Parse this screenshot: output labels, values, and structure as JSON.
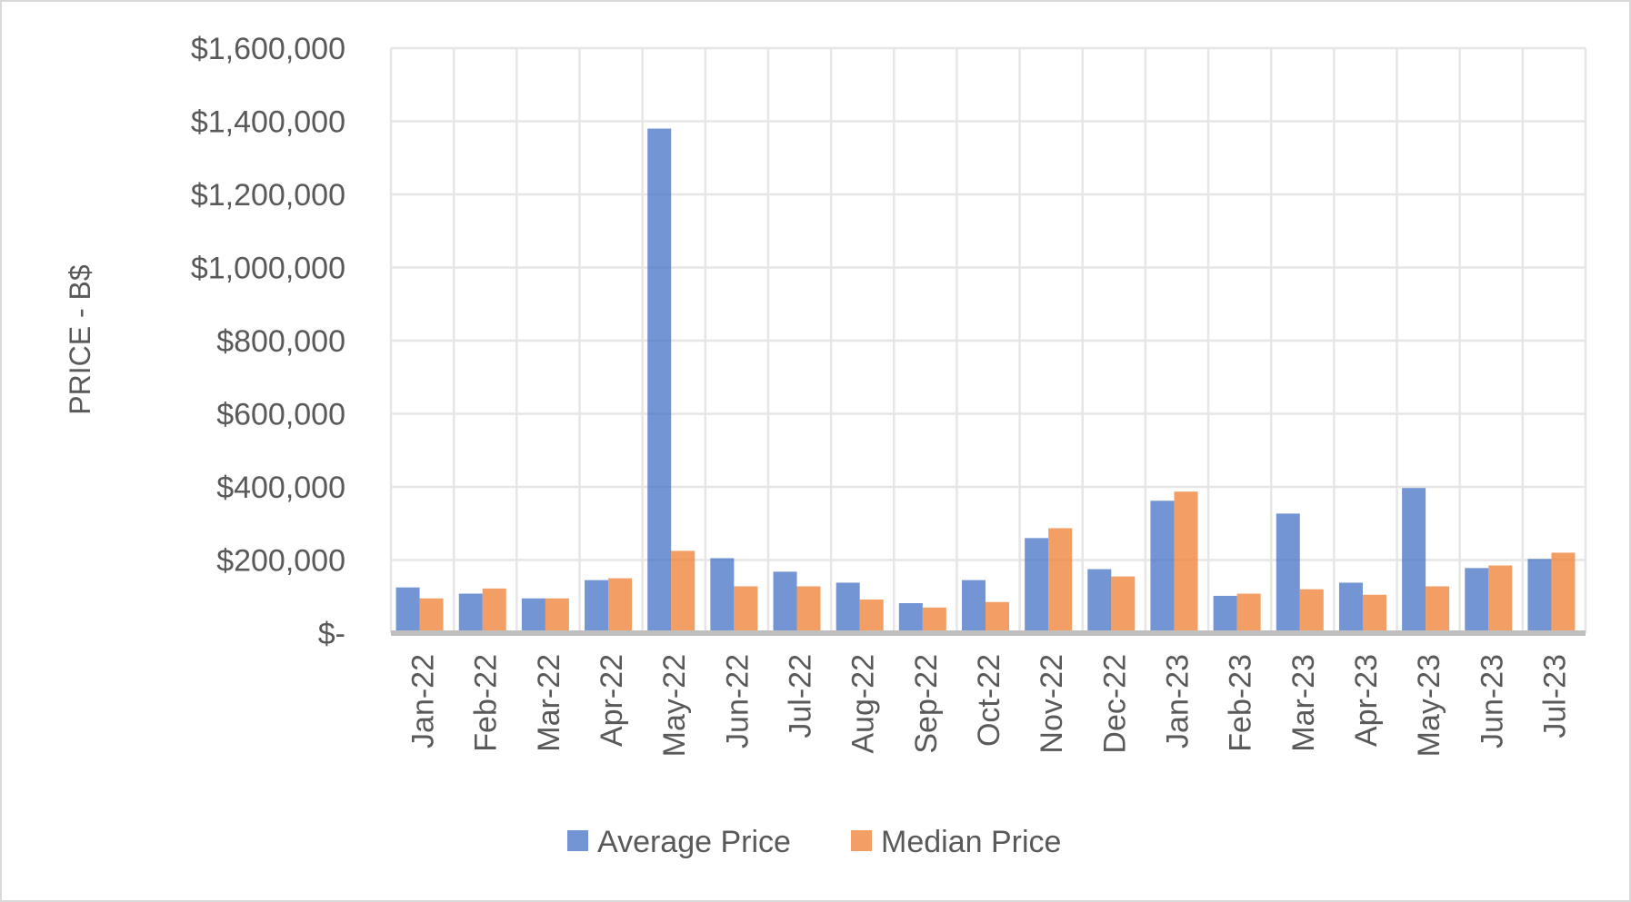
{
  "chart_data": {
    "type": "bar",
    "title": "",
    "xlabel": "",
    "ylabel": "PRICE - B$",
    "categories": [
      "Jan-22",
      "Feb-22",
      "Mar-22",
      "Apr-22",
      "May-22",
      "Jun-22",
      "Jul-22",
      "Aug-22",
      "Sep-22",
      "Oct-22",
      "Nov-22",
      "Dec-22",
      "Jan-23",
      "Feb-23",
      "Mar-23",
      "Apr-23",
      "May-23",
      "Jun-23",
      "Jul-23"
    ],
    "series": [
      {
        "name": "Average Price",
        "color": "#4472C4",
        "values": [
          125000,
          108000,
          95000,
          145000,
          1380000,
          205000,
          168000,
          138000,
          82000,
          145000,
          260000,
          175000,
          362000,
          102000,
          327000,
          138000,
          397000,
          178000,
          203000
        ]
      },
      {
        "name": "Median Price",
        "color": "#ED7D31",
        "values": [
          95000,
          122000,
          95000,
          150000,
          225000,
          128000,
          128000,
          92000,
          70000,
          85000,
          287000,
          155000,
          387000,
          108000,
          120000,
          105000,
          128000,
          185000,
          220000
        ]
      }
    ],
    "ylim": [
      0,
      1600000
    ],
    "yticks": [
      0,
      200000,
      400000,
      600000,
      800000,
      1000000,
      1200000,
      1400000,
      1600000
    ],
    "ytick_labels": [
      "$-",
      "$200,000",
      "$400,000",
      "$600,000",
      "$800,000",
      "$1,000,000",
      "$1,200,000",
      "$1,400,000",
      "$1,600,000"
    ],
    "grid": true,
    "legend_position": "bottom",
    "gridline_color": "#e6e6e6",
    "axis_color": "#bfbfbf"
  }
}
